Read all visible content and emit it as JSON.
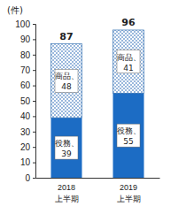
{
  "chart_data": {
    "type": "bar",
    "stacked": true,
    "data_labels": true,
    "grid": false,
    "y_label": "(件)",
    "categories": [
      "2018\n上半期",
      "2019\n上半期"
    ],
    "series": [
      {
        "name": "役務、",
        "color": "#1c6cc4",
        "values": [
          39,
          55
        ]
      },
      {
        "name": "商品、",
        "color": "#8fb0d8",
        "values": [
          48,
          41
        ]
      }
    ],
    "totals": [
      87,
      96
    ],
    "ylim": [
      0,
      100
    ],
    "yticks": [
      0,
      10,
      20,
      30,
      40,
      50,
      60,
      70,
      80,
      90,
      100
    ]
  }
}
